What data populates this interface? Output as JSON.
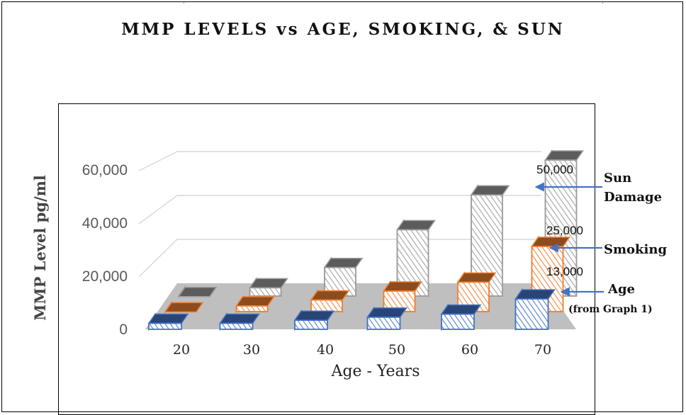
{
  "colors": {
    "sun": "#9a9a9a",
    "smoking": "#ed7d31",
    "age": "#4472c4",
    "floor": "#bfbfbf",
    "grid": "#d9d9d9",
    "arrow": "#4472c4"
  },
  "chart_data": {
    "type": "bar",
    "title": "MMP LEVELS vs AGE, SMOKING, & SUN",
    "xlabel": "Age - Years",
    "ylabel": "MMP Level  pg/ml",
    "categories": [
      "20",
      "30",
      "40",
      "50",
      "60",
      "70"
    ],
    "yticks": [
      "0",
      "20,000",
      "40,000",
      "60,000"
    ],
    "ylim": [
      0,
      60000
    ],
    "grid": true,
    "series": [
      {
        "name": "Sun Damage",
        "values": [
          3000,
          6000,
          13000,
          26000,
          38000,
          50000
        ]
      },
      {
        "name": "Smoking",
        "values": [
          3000,
          5000,
          7000,
          10000,
          13000,
          25000
        ]
      },
      {
        "name": "Age",
        "values": [
          5000,
          5000,
          6000,
          7000,
          8000,
          13000
        ]
      }
    ],
    "data_labels": [
      "50,000",
      "25,000",
      "13,000"
    ],
    "annotations": [
      {
        "lines": [
          "Sun",
          "Damage"
        ]
      },
      {
        "lines": [
          "Smoking"
        ]
      },
      {
        "lines": [
          "Age",
          "(from Graph 1)"
        ]
      }
    ]
  }
}
